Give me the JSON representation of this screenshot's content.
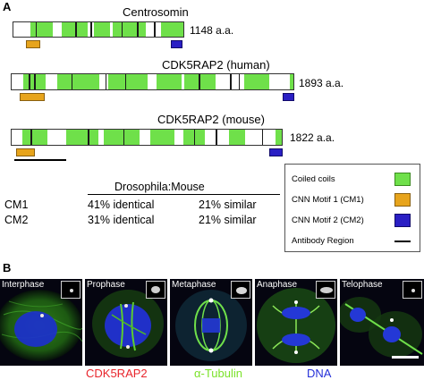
{
  "panel_a": {
    "label": "A",
    "proteins": [
      {
        "name": "Centrosomin",
        "length": "1148 a.a.",
        "segments": [
          [
            0.1,
            0.23
          ],
          [
            0.28,
            0.43
          ],
          [
            0.47,
            0.56
          ],
          [
            0.58,
            0.77
          ],
          [
            0.86,
            0.99
          ]
        ],
        "ticks": [
          0.13,
          0.36,
          0.45,
          0.63,
          0.72,
          0.82
        ],
        "motif1": [
          0.08,
          0.16
        ],
        "motif2": [
          0.92,
          0.99
        ],
        "antibody": null
      },
      {
        "name": "CDK5RAP2 (human)",
        "length": "1893 a.a.",
        "segments": [
          [
            0.04,
            0.12
          ],
          [
            0.16,
            0.31
          ],
          [
            0.34,
            0.48
          ],
          [
            0.51,
            0.6
          ],
          [
            0.61,
            0.72
          ],
          [
            0.82,
            0.91
          ],
          [
            0.98,
            1.0
          ]
        ],
        "ticks": [
          0.06,
          0.08,
          0.21,
          0.33,
          0.4,
          0.66,
          0.77,
          0.8
        ],
        "motif1": [
          0.03,
          0.12
        ],
        "motif2": [
          0.96,
          1.0
        ],
        "antibody": null
      },
      {
        "name": "CDK5RAP2 (mouse)",
        "length": "1822 a.a.",
        "segments": [
          [
            0.04,
            0.13
          ],
          [
            0.2,
            0.32
          ],
          [
            0.34,
            0.47
          ],
          [
            0.51,
            0.6
          ],
          [
            0.63,
            0.71
          ],
          [
            0.8,
            0.86
          ],
          [
            0.97,
            1.0
          ]
        ],
        "ticks": [
          0.07,
          0.28,
          0.41,
          0.67,
          0.75,
          0.92
        ],
        "motif1": [
          0.02,
          0.09
        ],
        "motif2": [
          0.95,
          1.0
        ],
        "antibody": [
          0.0,
          0.19
        ]
      }
    ],
    "comparison": {
      "header": "Drosophila:Mouse",
      "rows": [
        {
          "motif": "CM1",
          "identical": "41% identical",
          "similar": "21% similar"
        },
        {
          "motif": "CM2",
          "identical": "31% identical",
          "similar": "21% similar"
        }
      ]
    },
    "legend": {
      "coiled_coils": "Coiled coils",
      "cm1": "CNN Motif 1 (CM1)",
      "cm2": "CNN Motif 2 (CM2)",
      "antibody": "Antibody Region"
    }
  },
  "panel_b": {
    "label": "B",
    "phases": [
      "Interphase",
      "Prophase",
      "Metaphase",
      "Anaphase",
      "Telophase"
    ],
    "stains": [
      {
        "name": "CDK5RAP2",
        "color": "#e8242b"
      },
      {
        "name": "α-Tubulin",
        "color": "#7be22a"
      },
      {
        "name": "DNA",
        "color": "#2530d8"
      }
    ]
  },
  "colors": {
    "coiled": "#6fe04a",
    "cm1": "#e7a41c",
    "cm2": "#2a1fc4"
  }
}
